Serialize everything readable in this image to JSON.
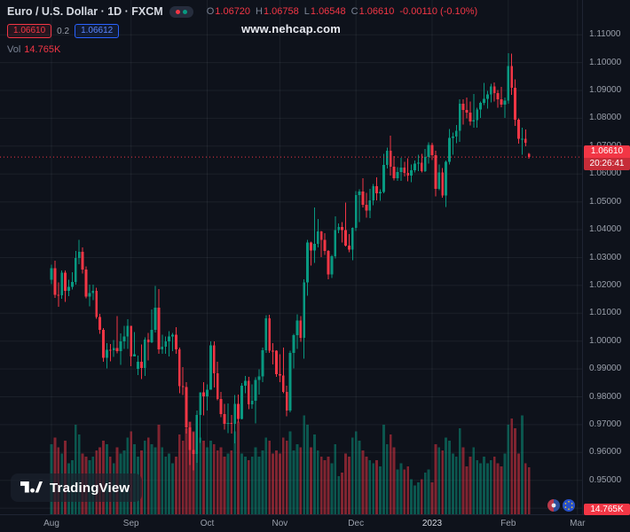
{
  "watermark": "www.nehcap.com",
  "logo_text": "TradingView",
  "header": {
    "symbol_title": "Euro / U.S. Dollar · 1D · FXCM",
    "ohlc_items": [
      {
        "label": "O",
        "value": "1.06720"
      },
      {
        "label": "H",
        "value": "1.06758"
      },
      {
        "label": "L",
        "value": "1.06548"
      },
      {
        "label": "C",
        "value": "1.06610"
      }
    ],
    "change": "-0.00110 (-0.10%)",
    "sell_price": "1.06610",
    "spread": "0.2",
    "buy_price": "1.06612",
    "vol_label": "Vol",
    "vol_value": "14.765K"
  },
  "price_axis": {
    "labels": [
      "1.11000",
      "1.10000",
      "1.09000",
      "1.08000",
      "1.07000",
      "1.06000",
      "1.05000",
      "1.04000",
      "1.03000",
      "1.02000",
      "1.01000",
      "1.00000",
      "0.99000",
      "0.98000",
      "0.97000",
      "0.96000",
      "0.95000",
      "0.94000"
    ],
    "current_price_label": "1.06610",
    "countdown": "20:26:41",
    "volume_badge": "14.765K"
  },
  "time_axis": {
    "labels": [
      {
        "text": "Aug",
        "index": 0
      },
      {
        "text": "Sep",
        "index": 23
      },
      {
        "text": "Oct",
        "index": 45
      },
      {
        "text": "Nov",
        "index": 66
      },
      {
        "text": "Dec",
        "index": 88
      },
      {
        "text": "2023",
        "index": 110,
        "year": true
      },
      {
        "text": "Feb",
        "index": 132
      },
      {
        "text": "Mar",
        "index": 152
      }
    ]
  },
  "colors": {
    "up": "#089981",
    "down": "#f23645",
    "buy_blue": "#2962ff",
    "background": "#0e121b"
  },
  "chart_data": {
    "type": "candlestick",
    "symbol": "Euro / U.S. Dollar",
    "interval": "1D",
    "exchange": "FXCM",
    "current_price": 1.0661,
    "y_axis": {
      "min": 0.94,
      "max": 1.11,
      "step": 0.01
    },
    "volume_unit": "K",
    "candle_format": [
      "open",
      "high",
      "low",
      "close",
      "volume_k"
    ],
    "candles": [
      [
        1.022,
        1.0275,
        1.0205,
        1.0262,
        22
      ],
      [
        1.0262,
        1.0288,
        1.0155,
        1.0166,
        24
      ],
      [
        1.0166,
        1.021,
        1.0123,
        1.0165,
        21
      ],
      [
        1.0165,
        1.0254,
        1.0151,
        1.0246,
        19
      ],
      [
        1.0246,
        1.0253,
        1.0141,
        1.018,
        23
      ],
      [
        1.018,
        1.0221,
        1.0161,
        1.0194,
        16
      ],
      [
        1.0194,
        1.0247,
        1.0185,
        1.0213,
        17
      ],
      [
        1.0213,
        1.0324,
        1.0202,
        1.0298,
        28
      ],
      [
        1.0298,
        1.0364,
        1.0276,
        1.032,
        25
      ],
      [
        1.032,
        1.0336,
        1.0242,
        1.0257,
        19
      ],
      [
        1.0257,
        1.0268,
        1.0154,
        1.016,
        18
      ],
      [
        1.016,
        1.0202,
        1.0125,
        1.0172,
        17
      ],
      [
        1.0172,
        1.0203,
        1.0147,
        1.0181,
        18
      ],
      [
        1.0181,
        1.0192,
        1.008,
        1.0086,
        20
      ],
      [
        1.0086,
        1.0098,
        1.0026,
        1.004,
        21
      ],
      [
        1.004,
        1.0046,
        0.9926,
        0.994,
        23
      ],
      [
        0.994,
        0.9992,
        0.9901,
        0.9968,
        22
      ],
      [
        0.9968,
        0.999,
        0.9928,
        0.9967,
        18
      ],
      [
        0.9967,
        1.0003,
        0.9943,
        0.9975,
        16
      ],
      [
        0.9975,
        1.009,
        0.9956,
        0.9964,
        21
      ],
      [
        0.9964,
        1.0027,
        0.9914,
        0.9999,
        19
      ],
      [
        0.9999,
        1.0054,
        0.9972,
        1.0016,
        20
      ],
      [
        1.0016,
        1.0079,
        0.9972,
        1.0054,
        24
      ],
      [
        1.0054,
        1.0055,
        0.991,
        0.9945,
        26
      ],
      [
        0.9945,
        1.0033,
        0.9944,
        0.9952,
        22
      ],
      [
        0.99,
        0.9948,
        0.9878,
        0.9926,
        18
      ],
      [
        0.9926,
        0.9987,
        0.9864,
        0.9903,
        20
      ],
      [
        0.9903,
        1.0014,
        0.9875,
        1.0005,
        23
      ],
      [
        1.0005,
        1.0029,
        0.993,
        0.9995,
        24
      ],
      [
        0.9995,
        1.0113,
        0.9992,
        1.004,
        22
      ],
      [
        1.004,
        1.0198,
        1.003,
        1.012,
        21
      ],
      [
        1.012,
        1.0187,
        0.9955,
        0.997,
        28
      ],
      [
        0.997,
        1.0023,
        0.9954,
        0.9979,
        21
      ],
      [
        0.9979,
        1.0017,
        0.9955,
        0.9999,
        18
      ],
      [
        0.9999,
        1.0036,
        0.9945,
        1.0016,
        19
      ],
      [
        1.0016,
        1.0029,
        0.9964,
        1.0023,
        16
      ],
      [
        1.0023,
        1.005,
        0.9954,
        0.997,
        18
      ],
      [
        0.997,
        0.9976,
        0.9813,
        0.9838,
        25
      ],
      [
        0.9838,
        0.9907,
        0.9807,
        0.9835,
        23
      ],
      [
        0.9835,
        0.9852,
        0.9667,
        0.969,
        27
      ],
      [
        0.969,
        0.9709,
        0.9554,
        0.9609,
        29
      ],
      [
        0.9609,
        0.9672,
        0.9536,
        0.9594,
        26
      ],
      [
        0.9594,
        0.975,
        0.9563,
        0.9735,
        28
      ],
      [
        0.9735,
        0.9816,
        0.9634,
        0.9815,
        24
      ],
      [
        0.9815,
        0.9853,
        0.9733,
        0.9802,
        23
      ],
      [
        0.9802,
        0.9844,
        0.9751,
        0.9826,
        21
      ],
      [
        0.9826,
        0.9999,
        0.9825,
        0.9985,
        23
      ],
      [
        0.9985,
        0.9999,
        0.9834,
        0.9885,
        22
      ],
      [
        0.9885,
        0.9926,
        0.9787,
        0.9792,
        20
      ],
      [
        0.9792,
        0.9818,
        0.9726,
        0.9737,
        21
      ],
      [
        0.9737,
        0.9774,
        0.9682,
        0.9703,
        18
      ],
      [
        0.9703,
        0.9776,
        0.967,
        0.9706,
        19
      ],
      [
        0.9706,
        0.9735,
        0.9668,
        0.9702,
        20
      ],
      [
        0.9702,
        0.9807,
        0.9632,
        0.9775,
        26
      ],
      [
        0.9775,
        0.9808,
        0.9707,
        0.9721,
        29
      ],
      [
        0.9721,
        0.985,
        0.9719,
        0.984,
        19
      ],
      [
        0.984,
        0.9875,
        0.9813,
        0.9857,
        18
      ],
      [
        0.9857,
        0.9872,
        0.9756,
        0.9772,
        17
      ],
      [
        0.9772,
        0.9845,
        0.9757,
        0.9785,
        18
      ],
      [
        0.9785,
        0.987,
        0.9705,
        0.9861,
        21
      ],
      [
        0.9861,
        0.9899,
        0.9808,
        0.9873,
        18
      ],
      [
        0.9873,
        0.9976,
        0.9852,
        0.9967,
        20
      ],
      [
        0.9967,
        1.0093,
        0.9958,
        1.0082,
        24
      ],
      [
        1.0082,
        1.0094,
        0.9958,
        0.9966,
        23
      ],
      [
        0.9966,
        0.9992,
        0.9916,
        0.9965,
        19
      ],
      [
        0.9965,
        0.9967,
        0.9872,
        0.9881,
        20
      ],
      [
        0.9881,
        0.9953,
        0.9853,
        0.9876,
        19
      ],
      [
        0.9876,
        0.9976,
        0.9812,
        0.9818,
        24
      ],
      [
        0.9818,
        0.984,
        0.973,
        0.975,
        23
      ],
      [
        0.975,
        0.9966,
        0.9744,
        0.9957,
        26
      ],
      [
        0.9957,
        1.0026,
        0.9902,
        1.0021,
        20
      ],
      [
        1.0021,
        1.0096,
        0.9972,
        1.0074,
        22
      ],
      [
        1.0074,
        1.0089,
        0.9998,
        1.0012,
        21
      ],
      [
        1.0012,
        1.0222,
        0.9936,
        1.021,
        31
      ],
      [
        1.021,
        1.0364,
        1.0163,
        1.0354,
        28
      ],
      [
        1.0354,
        1.0357,
        1.0271,
        1.0325,
        21
      ],
      [
        1.0325,
        1.048,
        1.028,
        1.0349,
        25
      ],
      [
        1.0349,
        1.0439,
        1.0336,
        1.0393,
        20
      ],
      [
        1.0393,
        1.0395,
        1.0301,
        1.0363,
        18
      ],
      [
        1.0363,
        1.0388,
        1.031,
        1.0324,
        17
      ],
      [
        1.0324,
        1.0327,
        1.0222,
        1.0239,
        18
      ],
      [
        1.0239,
        1.031,
        1.0226,
        1.0304,
        16
      ],
      [
        1.0304,
        1.0448,
        1.0296,
        1.0399,
        22
      ],
      [
        1.0399,
        1.0422,
        1.0387,
        1.041,
        12
      ],
      [
        1.041,
        1.0428,
        1.0354,
        1.0399,
        13
      ],
      [
        1.0399,
        1.0497,
        1.034,
        1.0343,
        19
      ],
      [
        1.0343,
        1.0385,
        1.0319,
        1.0328,
        18
      ],
      [
        1.0328,
        1.0408,
        1.029,
        1.0406,
        24
      ],
      [
        1.0406,
        1.0539,
        1.0395,
        1.0525,
        26
      ],
      [
        1.0525,
        1.0545,
        1.0428,
        1.0537,
        23
      ],
      [
        1.0537,
        1.0585,
        1.048,
        1.049,
        20
      ],
      [
        1.049,
        1.0533,
        1.0443,
        1.0468,
        18
      ],
      [
        1.0468,
        1.0547,
        1.0442,
        1.0506,
        17
      ],
      [
        1.0506,
        1.0564,
        1.0487,
        1.0556,
        16
      ],
      [
        1.0556,
        1.0588,
        1.0505,
        1.053,
        17
      ],
      [
        1.053,
        1.0545,
        1.0503,
        1.0535,
        15
      ],
      [
        1.0535,
        1.0673,
        1.053,
        1.0632,
        28
      ],
      [
        1.0632,
        1.0695,
        1.062,
        1.0683,
        22
      ],
      [
        1.0683,
        1.0737,
        1.0595,
        1.0627,
        25
      ],
      [
        1.0627,
        1.0664,
        1.0577,
        1.0585,
        21
      ],
      [
        1.0585,
        1.0625,
        1.0575,
        1.0607,
        14
      ],
      [
        1.0607,
        1.0658,
        1.0576,
        1.0623,
        16
      ],
      [
        1.0623,
        1.0643,
        1.0591,
        1.0604,
        14
      ],
      [
        1.0604,
        1.0657,
        1.0573,
        1.0594,
        15
      ],
      [
        1.0594,
        1.0634,
        1.0571,
        1.0613,
        11
      ],
      [
        1.0613,
        1.0648,
        1.0605,
        1.0637,
        9
      ],
      [
        1.0637,
        1.067,
        1.0611,
        1.064,
        10
      ],
      [
        1.064,
        1.0673,
        1.0605,
        1.061,
        11
      ],
      [
        1.061,
        1.069,
        1.0607,
        1.0661,
        13
      ],
      [
        1.0661,
        1.0714,
        1.0637,
        1.0705,
        14
      ],
      [
        1.0705,
        1.0713,
        1.065,
        1.0668,
        10
      ],
      [
        1.0668,
        1.0683,
        1.0519,
        1.0546,
        22
      ],
      [
        1.0546,
        1.0635,
        1.0542,
        1.0605,
        21
      ],
      [
        1.0605,
        1.0621,
        1.0515,
        1.0522,
        20
      ],
      [
        1.0522,
        1.0648,
        1.0482,
        1.0644,
        24
      ],
      [
        1.0644,
        1.0761,
        1.0634,
        1.073,
        23
      ],
      [
        1.073,
        1.0749,
        1.0669,
        1.0734,
        19
      ],
      [
        1.0734,
        1.0776,
        1.0711,
        1.0756,
        18
      ],
      [
        1.0756,
        1.0868,
        1.0716,
        1.0852,
        27
      ],
      [
        1.0852,
        1.0869,
        1.0778,
        1.083,
        21
      ],
      [
        1.083,
        1.0874,
        1.08,
        1.0821,
        15
      ],
      [
        1.0821,
        1.086,
        1.0775,
        1.0788,
        18
      ],
      [
        1.0788,
        1.0887,
        1.0766,
        1.0794,
        21
      ],
      [
        1.0794,
        1.0838,
        1.0766,
        1.0832,
        17
      ],
      [
        1.0832,
        1.086,
        1.0802,
        1.0856,
        16
      ],
      [
        1.0856,
        1.0927,
        1.0848,
        1.087,
        18
      ],
      [
        1.087,
        1.0898,
        1.0835,
        1.0886,
        16
      ],
      [
        1.0886,
        1.0924,
        1.0857,
        1.0915,
        17
      ],
      [
        1.0915,
        1.0929,
        1.086,
        1.0891,
        18
      ],
      [
        1.0891,
        1.0901,
        1.0838,
        1.0868,
        16
      ],
      [
        1.0868,
        1.0913,
        1.084,
        1.0849,
        15
      ],
      [
        1.0849,
        1.0874,
        1.0802,
        1.0863,
        19
      ],
      [
        1.0863,
        1.1034,
        1.0853,
        1.0987,
        28
      ],
      [
        1.0987,
        1.1033,
        1.0885,
        1.091,
        30
      ],
      [
        1.091,
        1.094,
        1.0772,
        1.0795,
        27
      ],
      [
        1.0795,
        1.08,
        1.0709,
        1.0726,
        19
      ],
      [
        1.0726,
        1.0766,
        1.0669,
        1.0727,
        31
      ],
      [
        1.0727,
        1.076,
        1.07,
        1.0712,
        16
      ],
      [
        1.0672,
        1.06758,
        1.06548,
        1.0661,
        14.765
      ]
    ]
  }
}
